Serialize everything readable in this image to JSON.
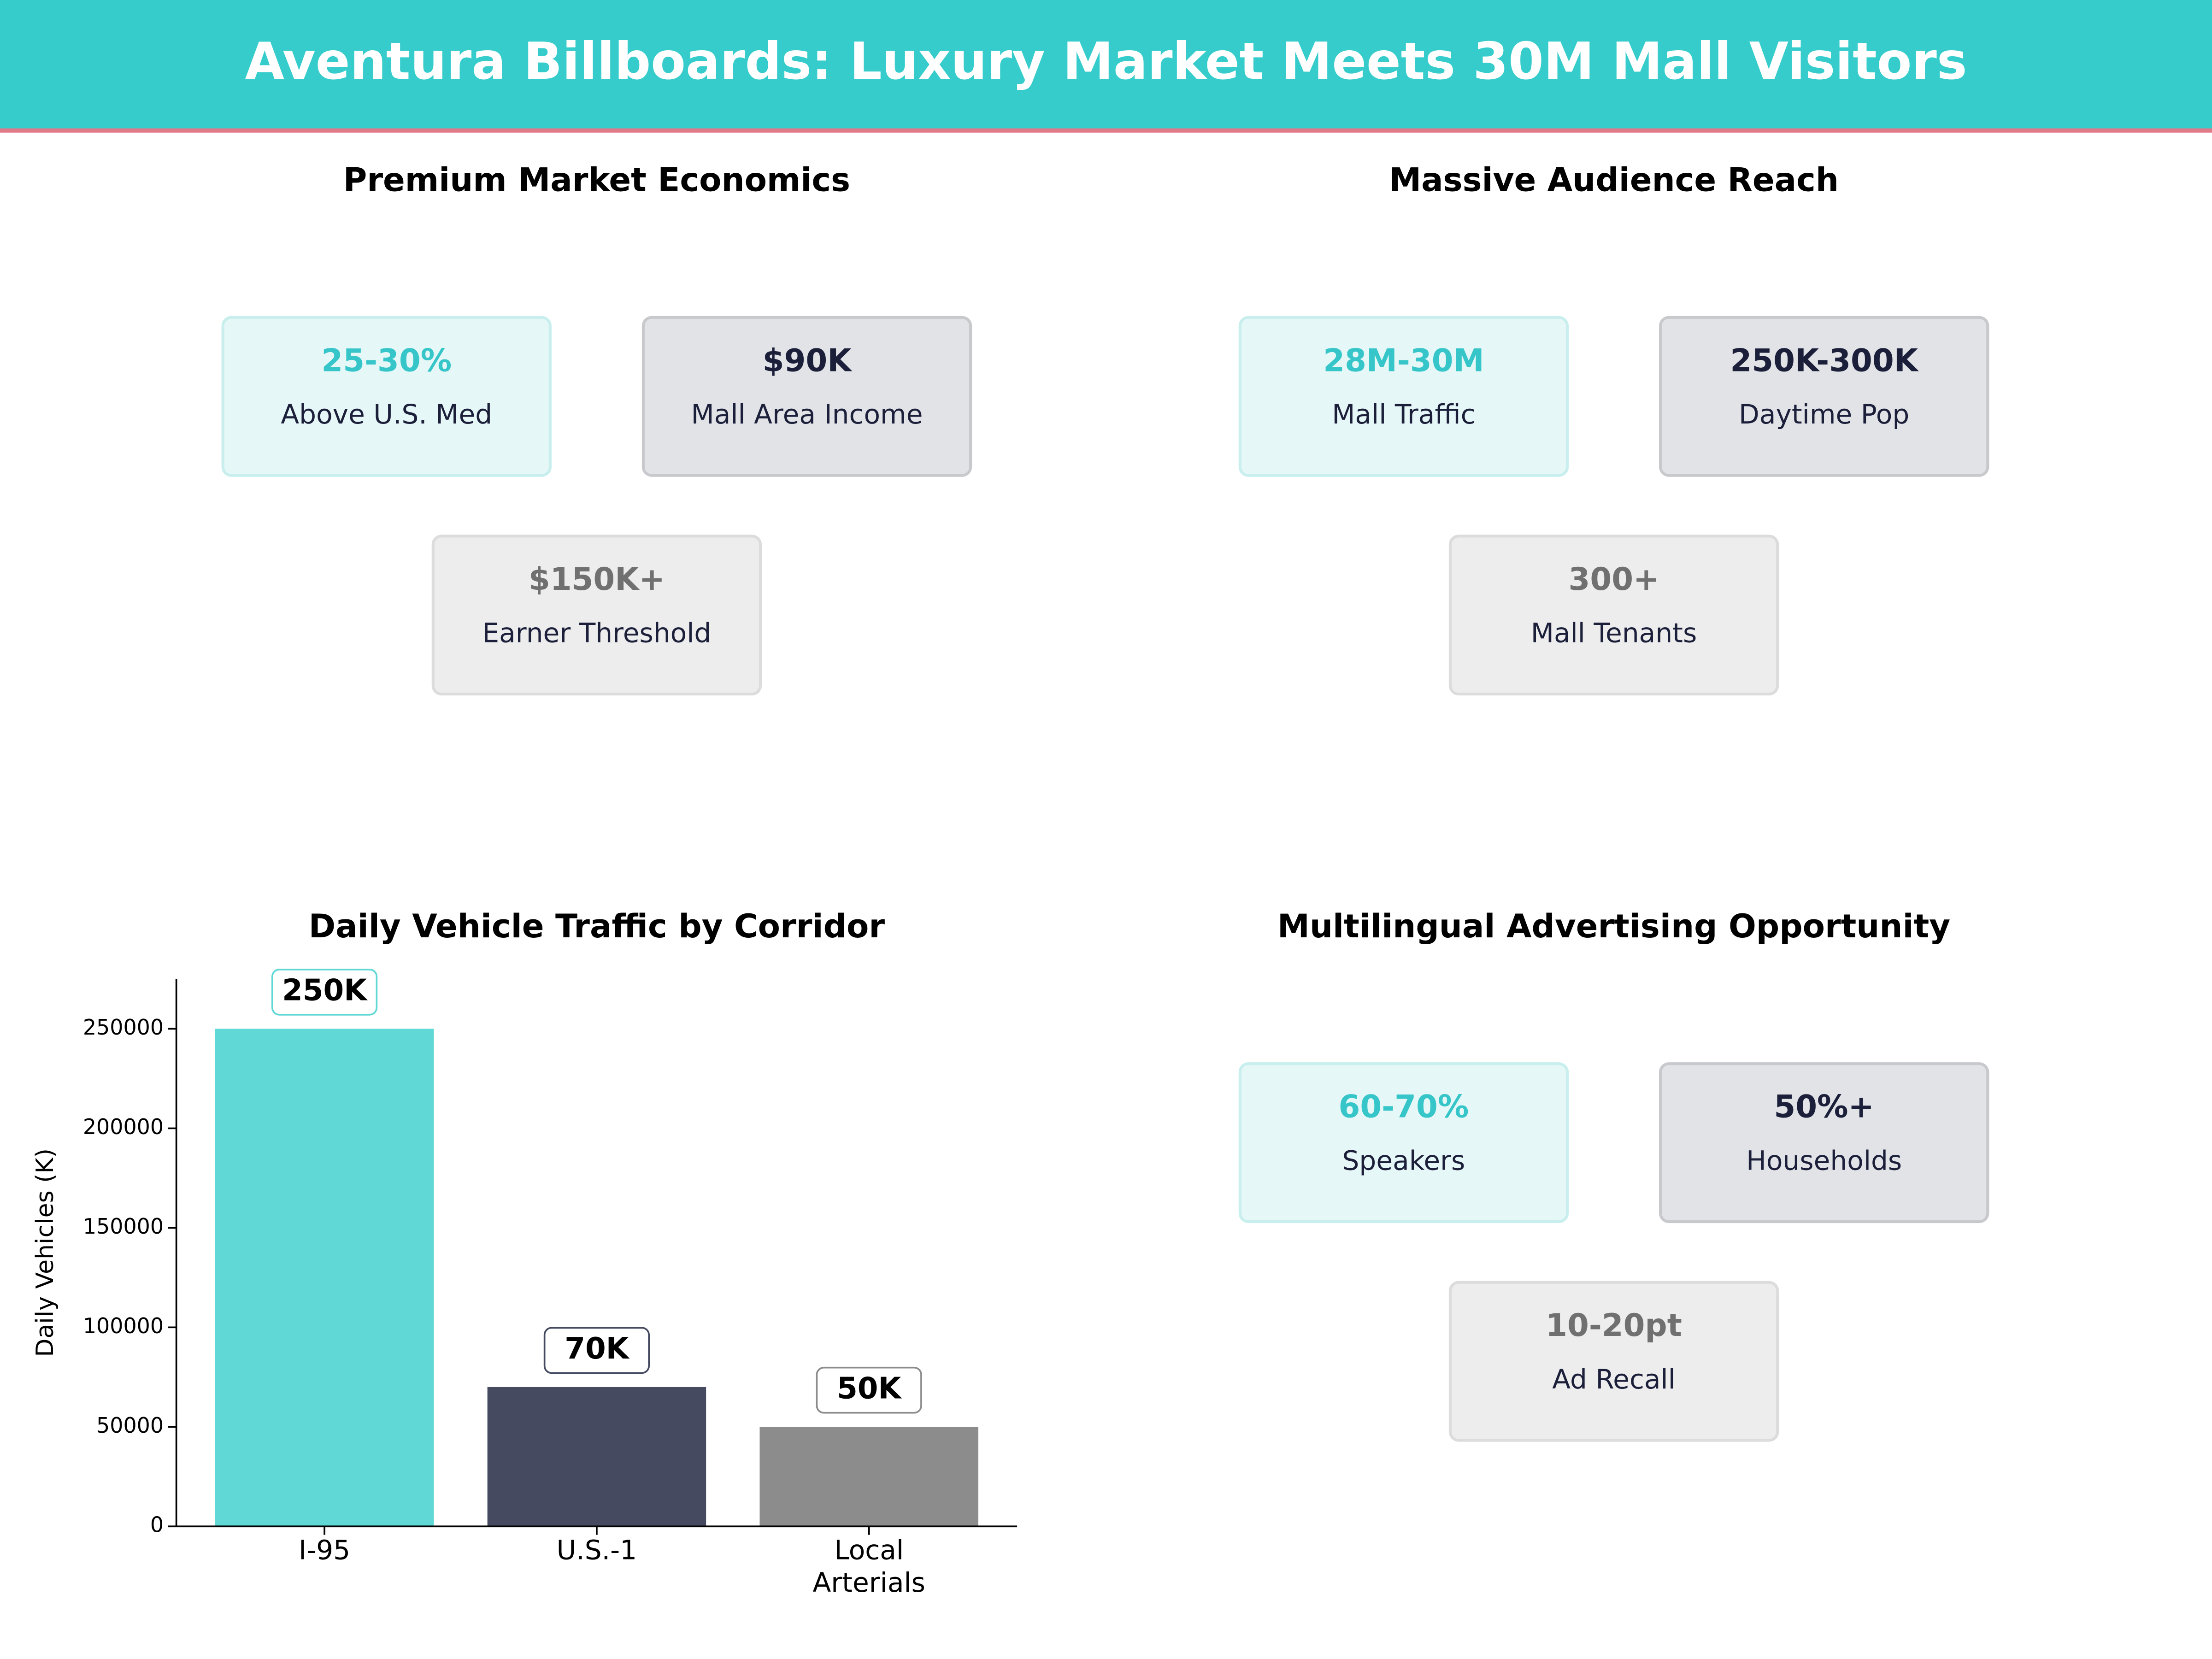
{
  "title": "Aventura Billboards: Luxury Market Meets 30M Mall Visitors",
  "panels": [
    {
      "title": "Premium Market Economics",
      "cards": [
        {
          "value": "25-30%",
          "label": "Above U.S. Med"
        },
        {
          "value": "$90K",
          "label": "Mall Area Income"
        },
        {
          "value": "$150K+",
          "label": "Earner Threshold"
        }
      ]
    },
    {
      "title": "Massive Audience Reach",
      "cards": [
        {
          "value": "28M-30M",
          "label": "Mall Traffic"
        },
        {
          "value": "250K-300K",
          "label": "Daytime Pop"
        },
        {
          "value": "300+",
          "label": "Mall Tenants"
        }
      ]
    },
    {
      "title": "Multilingual Advertising Opportunity",
      "cards": [
        {
          "value": "60-70%",
          "label": "Speakers"
        },
        {
          "value": "50%+",
          "label": "Households"
        },
        {
          "value": "10-20pt",
          "label": "Ad Recall"
        }
      ]
    }
  ],
  "chart_data": {
    "type": "bar",
    "title": "Daily Vehicle Traffic by Corridor",
    "y_label": "Daily Vehicles (K)",
    "categories": [
      "I-95",
      "U.S.-1",
      "Local\nArterials"
    ],
    "values": [
      250000,
      70000,
      50000
    ],
    "value_labels": [
      "250K",
      "70K",
      "50K"
    ],
    "colors": [
      "#5fd8d6",
      "#454a60",
      "#8c8c8c"
    ],
    "ylim": [
      0,
      275000
    ],
    "yticks": [
      0,
      50000,
      100000,
      150000,
      200000,
      250000
    ]
  }
}
